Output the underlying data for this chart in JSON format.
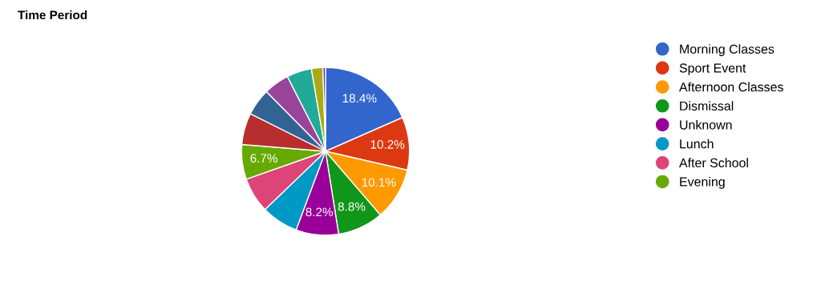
{
  "chart_data": {
    "type": "pie",
    "title": "Time Period",
    "categories": [
      "Morning Classes",
      "Sport Event",
      "Afternoon Classes",
      "Dismissal",
      "Unknown",
      "Lunch",
      "After School",
      "Evening",
      null,
      null,
      null,
      null,
      null,
      null
    ],
    "values": [
      18.4,
      10.2,
      10.1,
      8.8,
      8.2,
      7.1,
      6.8,
      6.7,
      6.1,
      5.2,
      4.9,
      4.8,
      2.2,
      0.5
    ],
    "colors": [
      "#3366cc",
      "#dc3912",
      "#ff9900",
      "#109618",
      "#990099",
      "#0099c6",
      "#dd4477",
      "#66aa00",
      "#b82e2e",
      "#316395",
      "#994499",
      "#22aa99",
      "#aaaa11",
      "#6633cc"
    ],
    "value_labels": [
      "18.4%",
      "10.2%",
      "10.1%",
      "8.8%",
      "8.2%",
      null,
      null,
      "6.7%",
      null,
      null,
      null,
      null,
      null,
      null
    ],
    "legend": "right"
  }
}
